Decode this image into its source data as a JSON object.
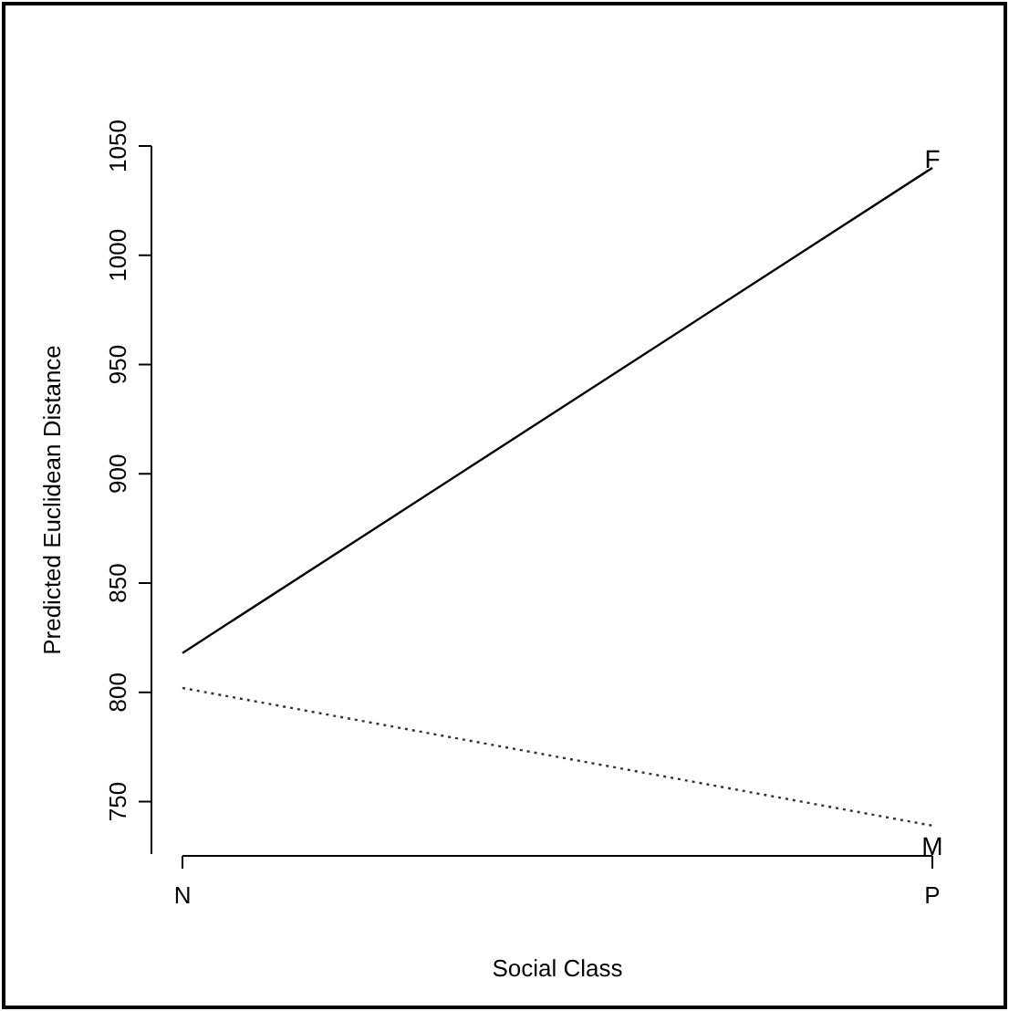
{
  "chart_data": {
    "type": "line",
    "xlabel": "Social Class",
    "ylabel": "Predicted Euclidean Distance",
    "categories": [
      "N",
      "P"
    ],
    "series": [
      {
        "color": "#000000",
        "values": [
          818,
          1040
        ],
        "line_style": "solid"
      },
      {
        "color": "#333333",
        "values": [
          802,
          739
        ],
        "line_style": "dotted"
      }
    ],
    "ylim": [
      726,
      1050
    ],
    "yticks": [
      750,
      800,
      850,
      900,
      950,
      1000,
      1050
    ],
    "legend": false,
    "marker": "none",
    "annotations": [
      {
        "text": "F",
        "x": "P",
        "y": 1040
      },
      {
        "text": "M",
        "x": "P",
        "y": 739
      }
    ]
  }
}
